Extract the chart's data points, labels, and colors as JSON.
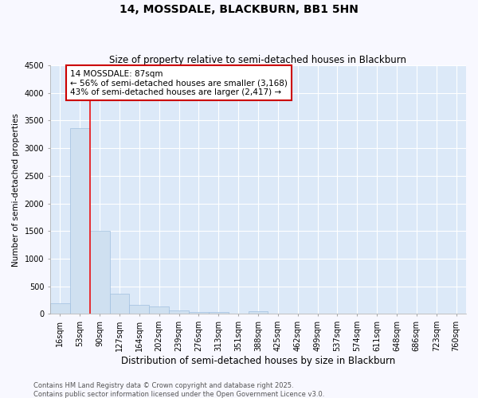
{
  "title": "14, MOSSDALE, BLACKBURN, BB1 5HN",
  "subtitle": "Size of property relative to semi-detached houses in Blackburn",
  "xlabel": "Distribution of semi-detached houses by size in Blackburn",
  "ylabel": "Number of semi-detached properties",
  "categories": [
    "16sqm",
    "53sqm",
    "90sqm",
    "127sqm",
    "164sqm",
    "202sqm",
    "239sqm",
    "276sqm",
    "313sqm",
    "351sqm",
    "388sqm",
    "425sqm",
    "462sqm",
    "499sqm",
    "537sqm",
    "574sqm",
    "611sqm",
    "648sqm",
    "686sqm",
    "723sqm",
    "760sqm"
  ],
  "values": [
    190,
    3360,
    1500,
    370,
    160,
    130,
    70,
    40,
    35,
    5,
    50,
    0,
    0,
    0,
    0,
    0,
    0,
    0,
    0,
    0,
    0
  ],
  "bar_color": "#cfe0f0",
  "bar_edge_color": "#a0c0e0",
  "vline_color": "#ee1111",
  "vline_position": 1.5,
  "annotation_text": "14 MOSSDALE: 87sqm\n← 56% of semi-detached houses are smaller (3,168)\n43% of semi-detached houses are larger (2,417) →",
  "annotation_box_color": "#cc0000",
  "ylim": [
    0,
    4500
  ],
  "yticks": [
    0,
    500,
    1000,
    1500,
    2000,
    2500,
    3000,
    3500,
    4000,
    4500
  ],
  "figure_bg_color": "#f8f8ff",
  "plot_bg_color": "#dce9f8",
  "grid_color": "#ffffff",
  "footer_line1": "Contains HM Land Registry data © Crown copyright and database right 2025.",
  "footer_line2": "Contains public sector information licensed under the Open Government Licence v3.0.",
  "title_fontsize": 10,
  "subtitle_fontsize": 8.5,
  "xlabel_fontsize": 8.5,
  "ylabel_fontsize": 7.5,
  "tick_fontsize": 7,
  "footer_fontsize": 6,
  "annotation_fontsize": 7.5
}
